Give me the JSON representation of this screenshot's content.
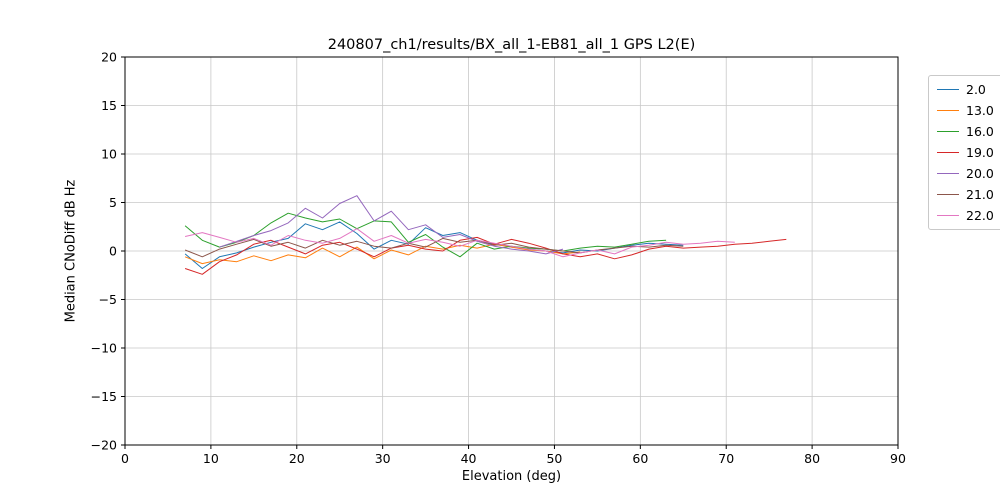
{
  "figure": {
    "title": "240807_ch1/results/BX_all_1-EB81_all_1 GPS L2(E)",
    "xlabel": "Elevation (deg)",
    "ylabel": "Median CNoDiff dB Hz"
  },
  "chart_data": {
    "type": "line",
    "title": "240807_ch1/results/BX_all_1-EB81_all_1 GPS L2(E)",
    "xlabel": "Elevation (deg)",
    "ylabel": "Median CNoDiff dB Hz",
    "xlim": [
      0,
      90
    ],
    "ylim": [
      -20,
      20
    ],
    "xticks": [
      0,
      10,
      20,
      30,
      40,
      50,
      60,
      70,
      80,
      90
    ],
    "yticks": [
      -20,
      -15,
      -10,
      -5,
      0,
      5,
      10,
      15,
      20
    ],
    "grid": true,
    "grid_color": "#c8c8c8",
    "legend_position": "outside-right",
    "x": [
      7,
      9,
      11,
      13,
      15,
      17,
      19,
      21,
      23,
      25,
      27,
      29,
      31,
      33,
      35,
      37,
      39,
      41,
      43,
      45,
      47,
      49,
      51,
      53,
      55,
      57,
      59,
      61,
      63,
      65,
      67,
      69,
      71,
      73,
      75,
      77
    ],
    "series": [
      {
        "name": "2.0",
        "color": "#1f77b4",
        "values": [
          -0.3,
          -1.8,
          -0.6,
          -0.2,
          0.4,
          0.9,
          1.3,
          2.8,
          2.2,
          3.0,
          1.8,
          0.2,
          1.1,
          0.7,
          2.4,
          1.6,
          1.9,
          1.1,
          0.7,
          0.4,
          0.2,
          0.0,
          -0.2,
          0.1,
          0.0,
          0.3,
          0.6,
          0.8,
          0.7,
          0.6,
          null,
          null,
          null,
          null,
          null,
          null
        ]
      },
      {
        "name": "13.0",
        "color": "#ff7f0e",
        "values": [
          -0.6,
          -1.3,
          -0.9,
          -1.1,
          -0.5,
          -1.0,
          -0.4,
          -0.7,
          0.3,
          -0.6,
          0.4,
          -0.8,
          0.1,
          -0.4,
          0.5,
          0.2,
          0.6,
          0.3,
          0.7,
          0.4,
          0.1,
          0.0,
          -0.3,
          -0.1,
          null,
          null,
          null,
          null,
          null,
          null,
          null,
          null,
          null,
          null,
          null,
          null
        ]
      },
      {
        "name": "16.0",
        "color": "#2ca02c",
        "values": [
          2.6,
          1.1,
          0.4,
          0.9,
          1.6,
          2.9,
          3.9,
          3.4,
          3.0,
          3.3,
          2.3,
          3.1,
          3.0,
          0.9,
          1.7,
          0.4,
          -0.6,
          0.8,
          0.2,
          0.5,
          0.3,
          0.2,
          0.0,
          0.3,
          0.5,
          0.4,
          0.7,
          1.0,
          1.1,
          null,
          null,
          null,
          null,
          null,
          null,
          null
        ]
      },
      {
        "name": "19.0",
        "color": "#d62728",
        "values": [
          -1.8,
          -2.4,
          -1.1,
          -0.4,
          0.7,
          1.1,
          0.4,
          -0.3,
          0.6,
          0.9,
          0.2,
          -0.6,
          0.3,
          0.6,
          0.2,
          0.0,
          1.1,
          1.4,
          0.7,
          1.2,
          0.8,
          0.3,
          -0.3,
          -0.6,
          -0.3,
          -0.8,
          -0.4,
          0.2,
          0.5,
          0.3,
          0.4,
          0.5,
          0.7,
          0.8,
          1.0,
          1.2
        ]
      },
      {
        "name": "20.0",
        "color": "#9467bd",
        "values": [
          null,
          null,
          0.4,
          1.0,
          1.6,
          2.1,
          2.9,
          4.4,
          3.4,
          4.9,
          5.7,
          3.1,
          4.1,
          2.2,
          2.7,
          1.4,
          1.7,
          1.0,
          0.5,
          0.2,
          0.0,
          -0.3,
          0.2,
          null,
          null,
          null,
          null,
          null,
          null,
          null,
          null,
          null,
          null,
          null,
          null,
          null
        ]
      },
      {
        "name": "21.0",
        "color": "#8c564b",
        "values": [
          0.1,
          -0.6,
          0.2,
          0.7,
          1.2,
          0.5,
          0.9,
          0.3,
          1.1,
          0.6,
          1.0,
          0.5,
          0.3,
          0.8,
          0.4,
          1.3,
          0.9,
          1.1,
          0.6,
          0.8,
          0.4,
          0.2,
          0.0,
          -0.2,
          0.1,
          0.3,
          0.5,
          0.4,
          0.6,
          0.5,
          null,
          null,
          null,
          null,
          null,
          null
        ]
      },
      {
        "name": "22.0",
        "color": "#e377c2",
        "values": [
          1.5,
          1.9,
          1.4,
          0.9,
          1.3,
          0.6,
          1.6,
          1.1,
          0.8,
          1.3,
          2.3,
          1.0,
          1.6,
          0.8,
          1.2,
          0.9,
          0.5,
          1.1,
          0.8,
          0.5,
          0.2,
          0.0,
          -0.6,
          -0.2,
          0.1,
          -0.3,
          0.4,
          0.6,
          0.9,
          0.7,
          0.8,
          1.0,
          0.9,
          null,
          null,
          null
        ]
      }
    ]
  }
}
